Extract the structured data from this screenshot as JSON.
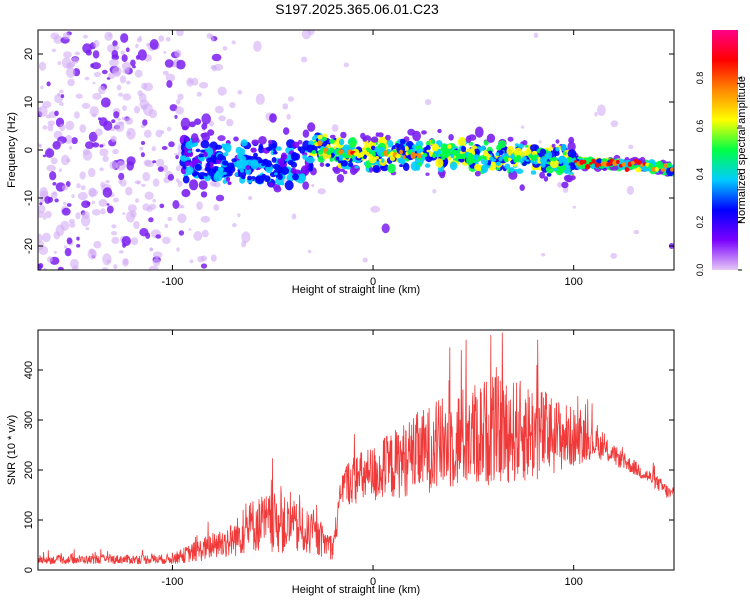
{
  "title": "S197.2025.365.06.01.C23",
  "colors": {
    "snr_line": "#f03a3a",
    "spec_low": "#d4b3f5",
    "spec_mid": "#7a1ff0",
    "frame": "#000000"
  },
  "chart_data": [
    {
      "type": "heatmap",
      "title": "S197.2025.365.06.01.C23",
      "xlabel": "Height of straight line (km)",
      "ylabel": "Frequency (Hz)",
      "xlim": [
        -167,
        150
      ],
      "ylim": [
        -25,
        25
      ],
      "xticks": [
        -100,
        0,
        100
      ],
      "yticks": [
        -20,
        -10,
        0,
        10,
        20
      ],
      "ridge": {
        "description_points_x": [
          -90,
          -70,
          -50,
          -35,
          -28,
          -20,
          0,
          20,
          40,
          60,
          80,
          100,
          110,
          130,
          150
        ],
        "center_freq_hz": [
          -2,
          -3,
          -3,
          -3,
          0.5,
          -0.5,
          -1,
          -1,
          -1,
          -1.5,
          -2,
          -2.5,
          -2.8,
          -3,
          -4
        ]
      },
      "colorbar": {
        "label": "Normalized spectral amplitude",
        "range": [
          0.0,
          1.0
        ],
        "ticks": [
          "0.0",
          "0.2",
          "0.4",
          "0.6",
          "0.8"
        ],
        "stops": [
          "#e6c8f5",
          "#7a00ff",
          "#0000ff",
          "#00ccff",
          "#00ff44",
          "#ffff00",
          "#ff8800",
          "#ff0000",
          "#ff0088"
        ]
      }
    },
    {
      "type": "line",
      "xlabel": "Height of straight line (km)",
      "ylabel": "SNR (10 * v/v)",
      "xlim": [
        -167,
        150
      ],
      "ylim": [
        0,
        480
      ],
      "xticks": [
        -100,
        0,
        100
      ],
      "yticks": [
        0,
        100,
        200,
        300,
        400
      ],
      "envelope": {
        "x": [
          -167,
          -100,
          -90,
          -70,
          -60,
          -50,
          -40,
          -30,
          -20,
          -15,
          -10,
          0,
          20,
          40,
          60,
          80,
          100,
          110,
          120,
          130,
          140,
          150
        ],
        "mean": [
          20,
          22,
          35,
          60,
          90,
          95,
          85,
          70,
          45,
          170,
          180,
          190,
          230,
          260,
          280,
          275,
          265,
          255,
          230,
          205,
          180,
          145
        ],
        "spread": [
          8,
          10,
          20,
          35,
          55,
          60,
          55,
          40,
          25,
          40,
          50,
          60,
          80,
          100,
          110,
          100,
          60,
          30,
          20,
          15,
          15,
          15
        ]
      }
    }
  ]
}
